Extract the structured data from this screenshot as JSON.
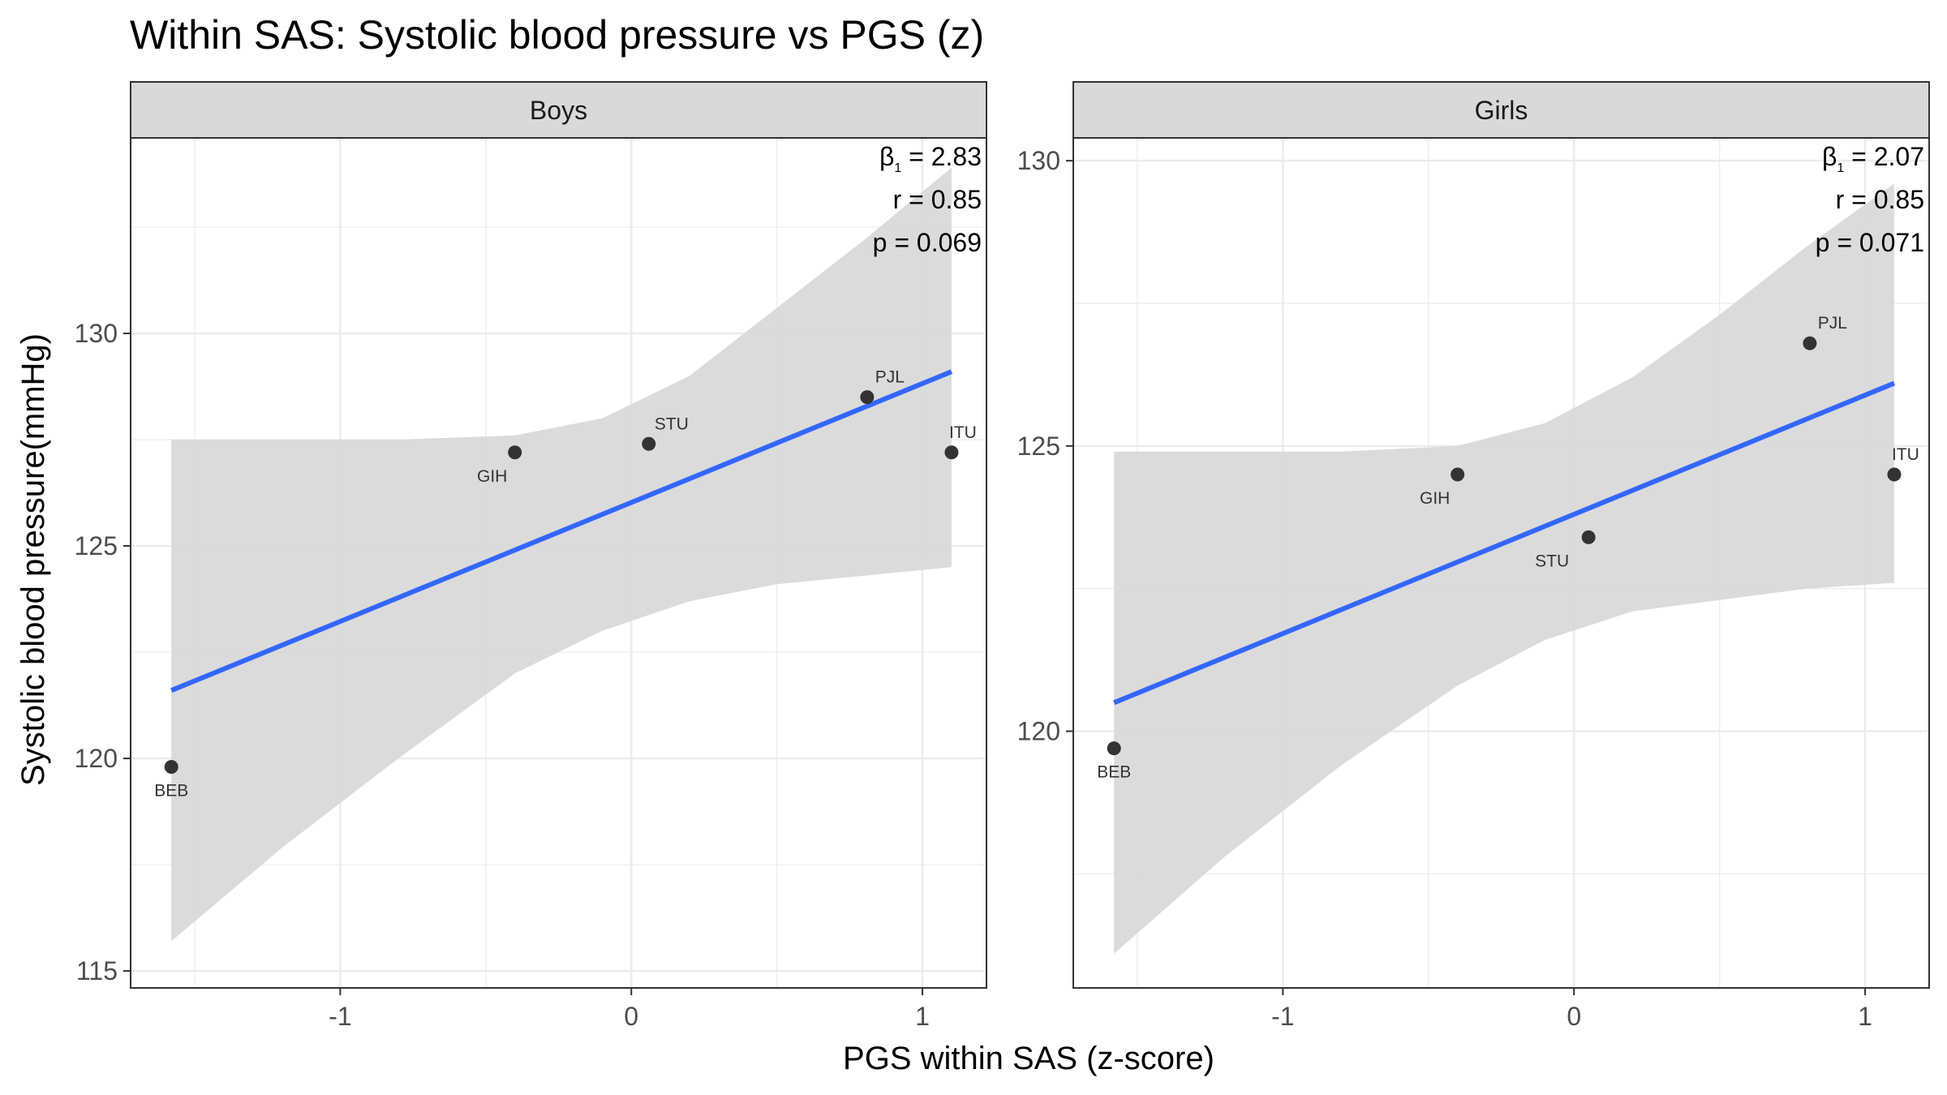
{
  "chart_data": {
    "type": "scatter",
    "title": "Within SAS: Systolic blood pressure vs PGS (z)",
    "xlabel": "PGS within SAS (z-score)",
    "ylabel": "Systolic blood pressure(mmHg)",
    "grid": true,
    "colors": {
      "fit_line": "#3366ff",
      "ci_band": "#d9d9d9",
      "points": "#333333",
      "strip": "#d9d9d9",
      "gridline": "#ebebeb"
    },
    "panels": [
      {
        "strip": "Boys",
        "xlim": [
          -1.72,
          1.22
        ],
        "ylim": [
          114.6,
          134.6
        ],
        "x_ticks": [
          "-1",
          "0",
          "1"
        ],
        "x_tick_values": [
          -1,
          0,
          1
        ],
        "y_ticks": [
          "115",
          "120",
          "125",
          "130"
        ],
        "y_tick_values": [
          115,
          120,
          125,
          130
        ],
        "stats": [
          "β",
          "1",
          " = 2.83",
          "r = 0.85",
          "p = 0.069"
        ],
        "points": [
          {
            "label": "BEB",
            "x": -1.58,
            "y": 119.8,
            "label_pos": "below"
          },
          {
            "label": "GIH",
            "x": -0.4,
            "y": 127.2,
            "label_pos": "below"
          },
          {
            "label": "STU",
            "x": 0.06,
            "y": 127.4,
            "label_pos": "above"
          },
          {
            "label": "PJL",
            "x": 0.81,
            "y": 128.5,
            "label_pos": "above"
          },
          {
            "label": "ITU",
            "x": 1.1,
            "y": 127.2,
            "label_pos": "above"
          }
        ],
        "fit": {
          "x": [
            -1.58,
            1.1
          ],
          "y": [
            121.6,
            129.1
          ]
        },
        "ci": {
          "x": [
            -1.58,
            -1.2,
            -0.8,
            -0.4,
            -0.1,
            0.2,
            0.5,
            0.8,
            1.1
          ],
          "upper": [
            127.5,
            127.5,
            127.5,
            127.6,
            128.0,
            129.0,
            130.6,
            132.2,
            133.9
          ],
          "lower": [
            115.7,
            117.9,
            120.0,
            122.0,
            123.0,
            123.7,
            124.1,
            124.3,
            124.5
          ]
        }
      },
      {
        "strip": "Girls",
        "xlim": [
          -1.72,
          1.22
        ],
        "ylim": [
          115.5,
          130.4
        ],
        "x_ticks": [
          "-1",
          "0",
          "1"
        ],
        "x_tick_values": [
          -1,
          0,
          1
        ],
        "y_ticks": [
          "120",
          "125",
          "130"
        ],
        "y_tick_values": [
          120,
          125,
          130
        ],
        "stats": [
          "β",
          "1",
          " = 2.07",
          "r = 0.85",
          "p = 0.071"
        ],
        "points": [
          {
            "label": "BEB",
            "x": -1.58,
            "y": 119.7,
            "label_pos": "below"
          },
          {
            "label": "GIH",
            "x": -0.4,
            "y": 124.5,
            "label_pos": "below"
          },
          {
            "label": "STU",
            "x": 0.05,
            "y": 123.4,
            "label_pos": "below"
          },
          {
            "label": "PJL",
            "x": 0.81,
            "y": 126.8,
            "label_pos": "above"
          },
          {
            "label": "ITU",
            "x": 1.1,
            "y": 124.5,
            "label_pos": "above"
          }
        ],
        "fit": {
          "x": [
            -1.58,
            1.1
          ],
          "y": [
            120.5,
            126.1
          ]
        },
        "ci": {
          "x": [
            -1.58,
            -1.2,
            -0.8,
            -0.4,
            -0.1,
            0.2,
            0.5,
            0.8,
            1.1
          ],
          "upper": [
            124.9,
            124.9,
            124.9,
            125.0,
            125.4,
            126.2,
            127.3,
            128.5,
            129.6
          ],
          "lower": [
            116.1,
            117.8,
            119.4,
            120.8,
            121.6,
            122.1,
            122.3,
            122.5,
            122.6
          ]
        }
      }
    ]
  }
}
